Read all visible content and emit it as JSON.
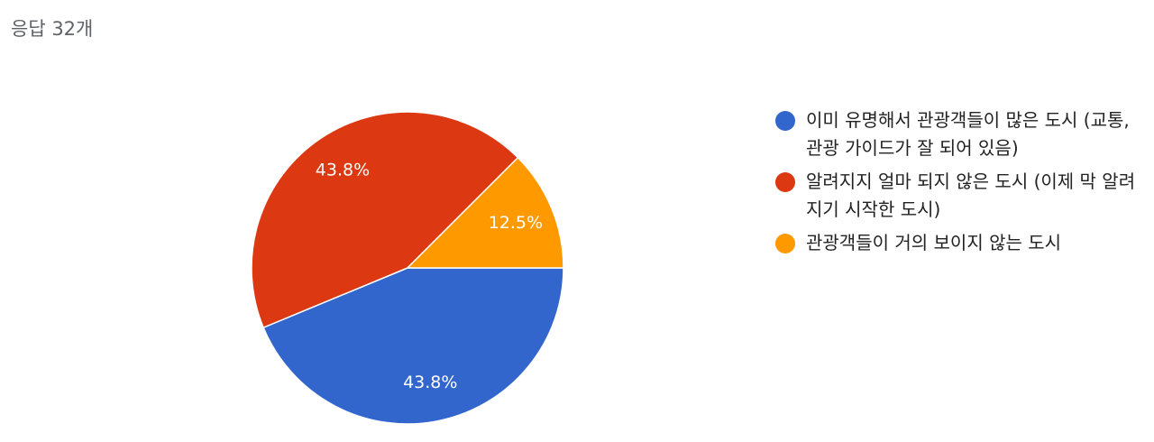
{
  "header": {
    "title": "응답 32개"
  },
  "chart_data": {
    "type": "pie",
    "categories": [
      "이미 유명해서 관광객들이 많은 도시 (교통, 관광 가이드가 잘 되어 있음)",
      "알려지지 얼마 되지 않은 도시 (이제 막 알려지기 시작한 도시)",
      "관광객들이 거의 보이지 않는 도시"
    ],
    "values": [
      43.8,
      43.8,
      12.5
    ],
    "value_labels": [
      "43.8%",
      "43.8%",
      "12.5%"
    ],
    "colors": [
      "#3366cc",
      "#dc3912",
      "#ff9900"
    ],
    "legend": "right"
  }
}
